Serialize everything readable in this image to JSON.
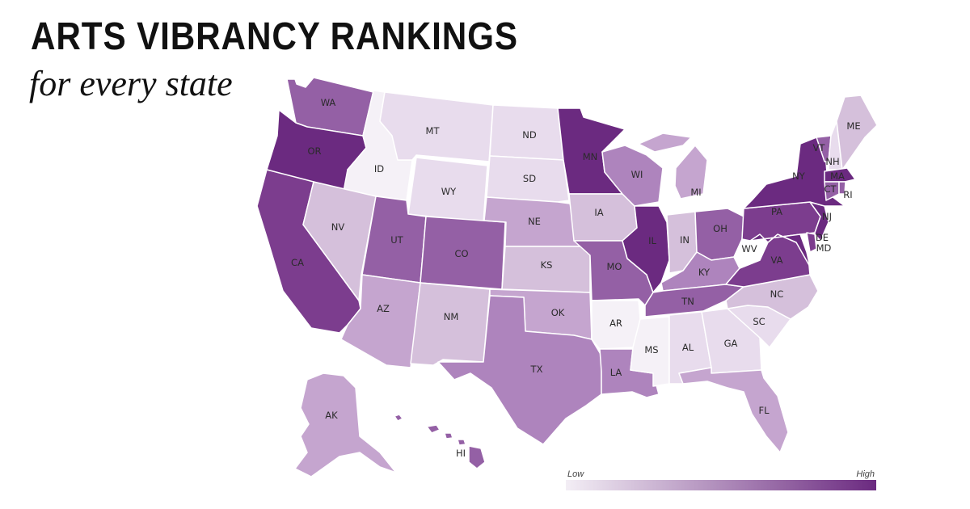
{
  "title": "ARTS VIBRANCY RANKINGS",
  "subtitle": "for every state",
  "legend": {
    "low_label": "Low",
    "high_label": "High",
    "low_color": "#f3eef5",
    "high_color": "#6b2a80"
  },
  "colors": {
    "c1": "#f5f1f7",
    "c2": "#e8dced",
    "c3": "#d5c0db",
    "c4": "#c5a5cf",
    "c5": "#ae84bd",
    "c6": "#9460a5",
    "c7": "#7c3d8e",
    "c8": "#6b2a80",
    "outline": "#ffffff",
    "label": "#2a2a2a"
  },
  "states": [
    {
      "id": "WA",
      "label": "WA",
      "level": 6
    },
    {
      "id": "OR",
      "label": "OR",
      "level": 8
    },
    {
      "id": "CA",
      "label": "CA",
      "level": 7
    },
    {
      "id": "ID",
      "label": "ID",
      "level": 1
    },
    {
      "id": "NV",
      "label": "NV",
      "level": 3
    },
    {
      "id": "MT",
      "label": "MT",
      "level": 2
    },
    {
      "id": "WY",
      "label": "WY",
      "level": 2
    },
    {
      "id": "UT",
      "label": "UT",
      "level": 6
    },
    {
      "id": "AZ",
      "label": "AZ",
      "level": 4
    },
    {
      "id": "CO",
      "label": "CO",
      "level": 6
    },
    {
      "id": "NM",
      "label": "NM",
      "level": 3
    },
    {
      "id": "ND",
      "label": "ND",
      "level": 2
    },
    {
      "id": "SD",
      "label": "SD",
      "level": 2
    },
    {
      "id": "NE",
      "label": "NE",
      "level": 4
    },
    {
      "id": "KS",
      "label": "KS",
      "level": 3
    },
    {
      "id": "OK",
      "label": "OK",
      "level": 4
    },
    {
      "id": "TX",
      "label": "TX",
      "level": 5
    },
    {
      "id": "MN",
      "label": "MN",
      "level": 8
    },
    {
      "id": "IA",
      "label": "IA",
      "level": 3
    },
    {
      "id": "MO",
      "label": "MO",
      "level": 6
    },
    {
      "id": "AR",
      "label": "AR",
      "level": 1
    },
    {
      "id": "LA",
      "label": "LA",
      "level": 5
    },
    {
      "id": "WI",
      "label": "WI",
      "level": 5
    },
    {
      "id": "IL",
      "label": "IL",
      "level": 8
    },
    {
      "id": "MI",
      "label": "MI",
      "level": 4
    },
    {
      "id": "IN",
      "label": "IN",
      "level": 3
    },
    {
      "id": "OH",
      "label": "OH",
      "level": 6
    },
    {
      "id": "KY",
      "label": "KY",
      "level": 5
    },
    {
      "id": "TN",
      "label": "TN",
      "level": 6
    },
    {
      "id": "MS",
      "label": "MS",
      "level": 1
    },
    {
      "id": "AL",
      "label": "AL",
      "level": 2
    },
    {
      "id": "GA",
      "label": "GA",
      "level": 2
    },
    {
      "id": "FL",
      "label": "FL",
      "level": 4
    },
    {
      "id": "SC",
      "label": "SC",
      "level": 2
    },
    {
      "id": "NC",
      "label": "NC",
      "level": 3
    },
    {
      "id": "VA",
      "label": "VA",
      "level": 7
    },
    {
      "id": "WV",
      "label": "WV",
      "level": 0
    },
    {
      "id": "PA",
      "label": "PA",
      "level": 7
    },
    {
      "id": "NY",
      "label": "NY",
      "level": 8
    },
    {
      "id": "VT",
      "label": "VT",
      "level": 6
    },
    {
      "id": "NH",
      "label": "NH",
      "level": 2
    },
    {
      "id": "ME",
      "label": "ME",
      "level": 3
    },
    {
      "id": "MA",
      "label": "MA",
      "level": 8
    },
    {
      "id": "CT",
      "label": "CT",
      "level": 6
    },
    {
      "id": "RI",
      "label": "RI",
      "level": 6
    },
    {
      "id": "NJ",
      "label": "NJ",
      "level": 8
    },
    {
      "id": "DE",
      "label": "DE",
      "level": 7
    },
    {
      "id": "MD",
      "label": "MD",
      "level": 8
    },
    {
      "id": "AK",
      "label": "AK",
      "level": 4
    },
    {
      "id": "HI",
      "label": "HI",
      "level": 6
    }
  ]
}
